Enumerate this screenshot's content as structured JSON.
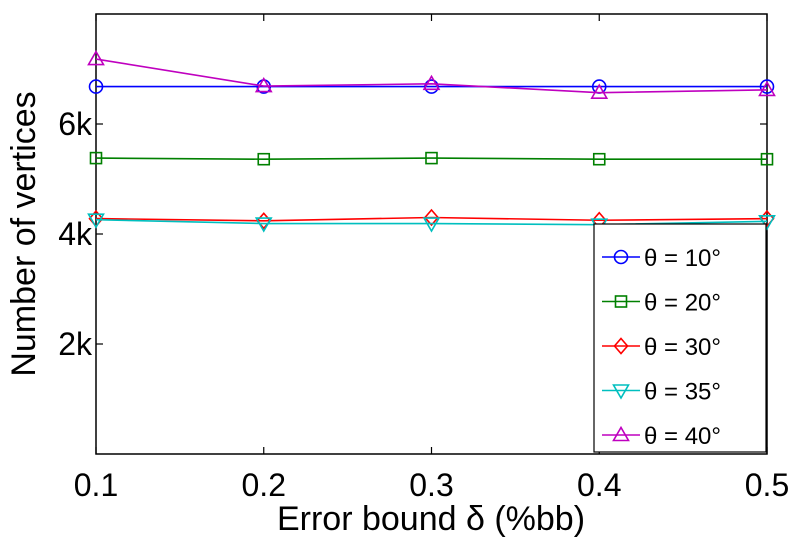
{
  "chart_data": {
    "type": "line",
    "xlabel": "Error bound δ (%bb)",
    "ylabel": "Number of vertices",
    "xlim": [
      0.1,
      0.5
    ],
    "ylim": [
      0,
      8000
    ],
    "x": [
      0.1,
      0.2,
      0.3,
      0.4,
      0.5
    ],
    "x_tick_labels": [
      "0.1",
      "0.2",
      "0.3",
      "0.4",
      "0.5"
    ],
    "y_ticks": [
      2000,
      4000,
      6000
    ],
    "y_tick_labels": [
      "2k",
      "4k",
      "6k"
    ],
    "grid": false,
    "legend_position": "bottom-right",
    "series": [
      {
        "name": "θ = 10°",
        "color": "#0000ff",
        "marker": "circle",
        "values": [
          6680,
          6680,
          6680,
          6680,
          6680
        ]
      },
      {
        "name": "θ = 20°",
        "color": "#008000",
        "marker": "square",
        "values": [
          5380,
          5360,
          5380,
          5360,
          5360
        ]
      },
      {
        "name": "θ = 30°",
        "color": "#ff0000",
        "marker": "diamond",
        "values": [
          4280,
          4240,
          4300,
          4250,
          4280
        ]
      },
      {
        "name": "θ = 35°",
        "color": "#00bfbf",
        "marker": "triangle-down",
        "values": [
          4260,
          4190,
          4190,
          4170,
          4230
        ]
      },
      {
        "name": "θ = 40°",
        "color": "#bf00bf",
        "marker": "triangle-up",
        "values": [
          7180,
          6690,
          6730,
          6570,
          6620
        ]
      }
    ]
  }
}
